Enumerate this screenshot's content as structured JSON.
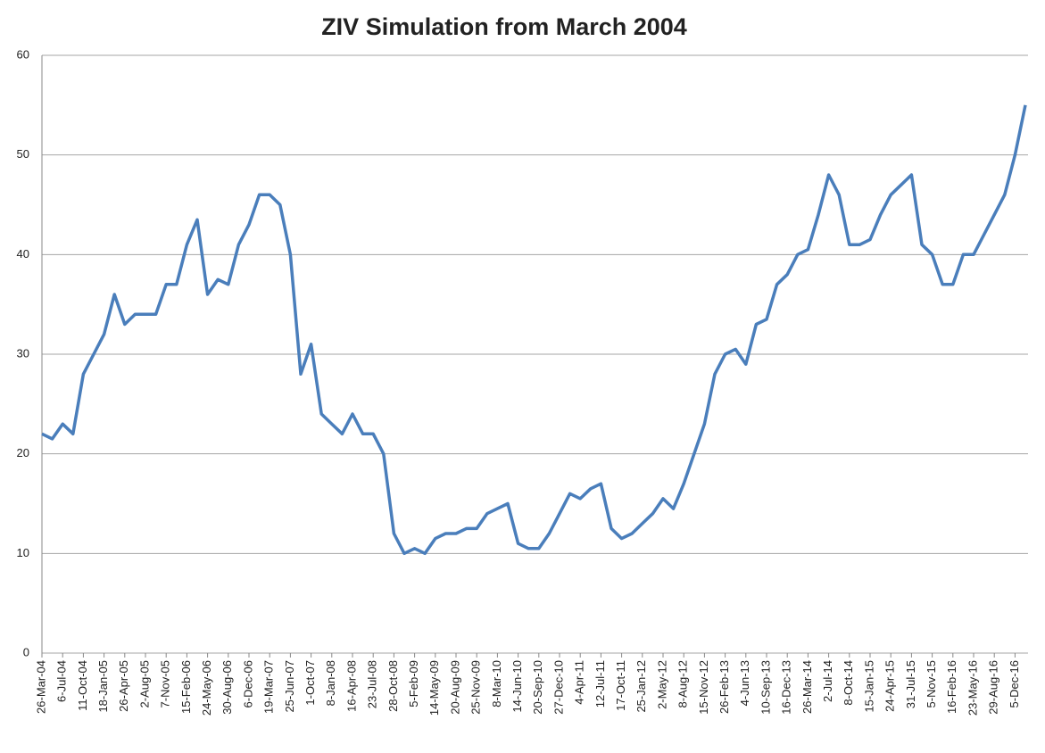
{
  "chart_data": {
    "type": "line",
    "title": "ZIV Simulation from March 2004",
    "categories": [
      "26-Mar-04",
      null,
      "6-Jul-04",
      null,
      "11-Oct-04",
      null,
      "18-Jan-05",
      null,
      "26-Apr-05",
      null,
      "2-Aug-05",
      null,
      "7-Nov-05",
      null,
      "15-Feb-06",
      null,
      "24-May-06",
      null,
      "30-Aug-06",
      null,
      "6-Dec-06",
      null,
      "19-Mar-07",
      null,
      "25-Jun-07",
      null,
      "1-Oct-07",
      null,
      "8-Jan-08",
      null,
      "16-Apr-08",
      null,
      "23-Jul-08",
      null,
      "28-Oct-08",
      null,
      "5-Feb-09",
      null,
      "14-May-09",
      null,
      "20-Aug-09",
      null,
      "25-Nov-09",
      null,
      "8-Mar-10",
      null,
      "14-Jun-10",
      null,
      "20-Sep-10",
      null,
      "27-Dec-10",
      null,
      "4-Apr-11",
      null,
      "12-Jul-11",
      null,
      "17-Oct-11",
      null,
      "25-Jan-12",
      null,
      "2-May-12",
      null,
      "8-Aug-12",
      null,
      "15-Nov-12",
      null,
      "26-Feb-13",
      null,
      "4-Jun-13",
      null,
      "10-Sep-13",
      null,
      "16-Dec-13",
      null,
      "26-Mar-14",
      null,
      "2-Jul-14",
      null,
      "8-Oct-14",
      null,
      "15-Jan-15",
      null,
      "24-Apr-15",
      null,
      "31-Jul-15",
      null,
      "5-Nov-15",
      null,
      "16-Feb-16",
      null,
      "23-May-16",
      null,
      "29-Aug-16",
      null,
      "5-Dec-16",
      null
    ],
    "series": [
      {
        "name": "ZIV",
        "color": "#4a7ebb",
        "values": [
          22,
          21.5,
          23,
          22,
          28,
          30,
          32,
          36,
          33,
          34,
          34,
          34,
          37,
          37,
          41,
          43.5,
          36,
          37.5,
          37,
          41,
          43,
          46,
          46,
          45,
          40,
          28,
          31,
          24,
          23,
          22,
          24,
          22,
          22,
          20,
          12,
          10,
          10.5,
          10,
          11.5,
          12,
          12,
          12.5,
          12.5,
          14,
          14.5,
          15,
          11,
          10.5,
          10.5,
          12,
          14,
          16,
          15.5,
          16.5,
          17,
          12.5,
          11.5,
          12,
          13,
          14,
          15.5,
          14.5,
          17,
          20,
          23,
          28,
          30,
          30.5,
          29,
          33,
          33.5,
          37,
          38,
          40,
          40.5,
          44,
          48,
          46,
          41,
          41,
          41.5,
          44,
          46,
          47,
          48,
          41,
          40,
          37,
          37,
          40,
          40,
          42,
          44,
          46,
          50,
          55
        ]
      }
    ],
    "ylim": [
      0,
      60
    ],
    "yticks": [
      0,
      10,
      20,
      30,
      40,
      50,
      60
    ],
    "grid": true
  }
}
